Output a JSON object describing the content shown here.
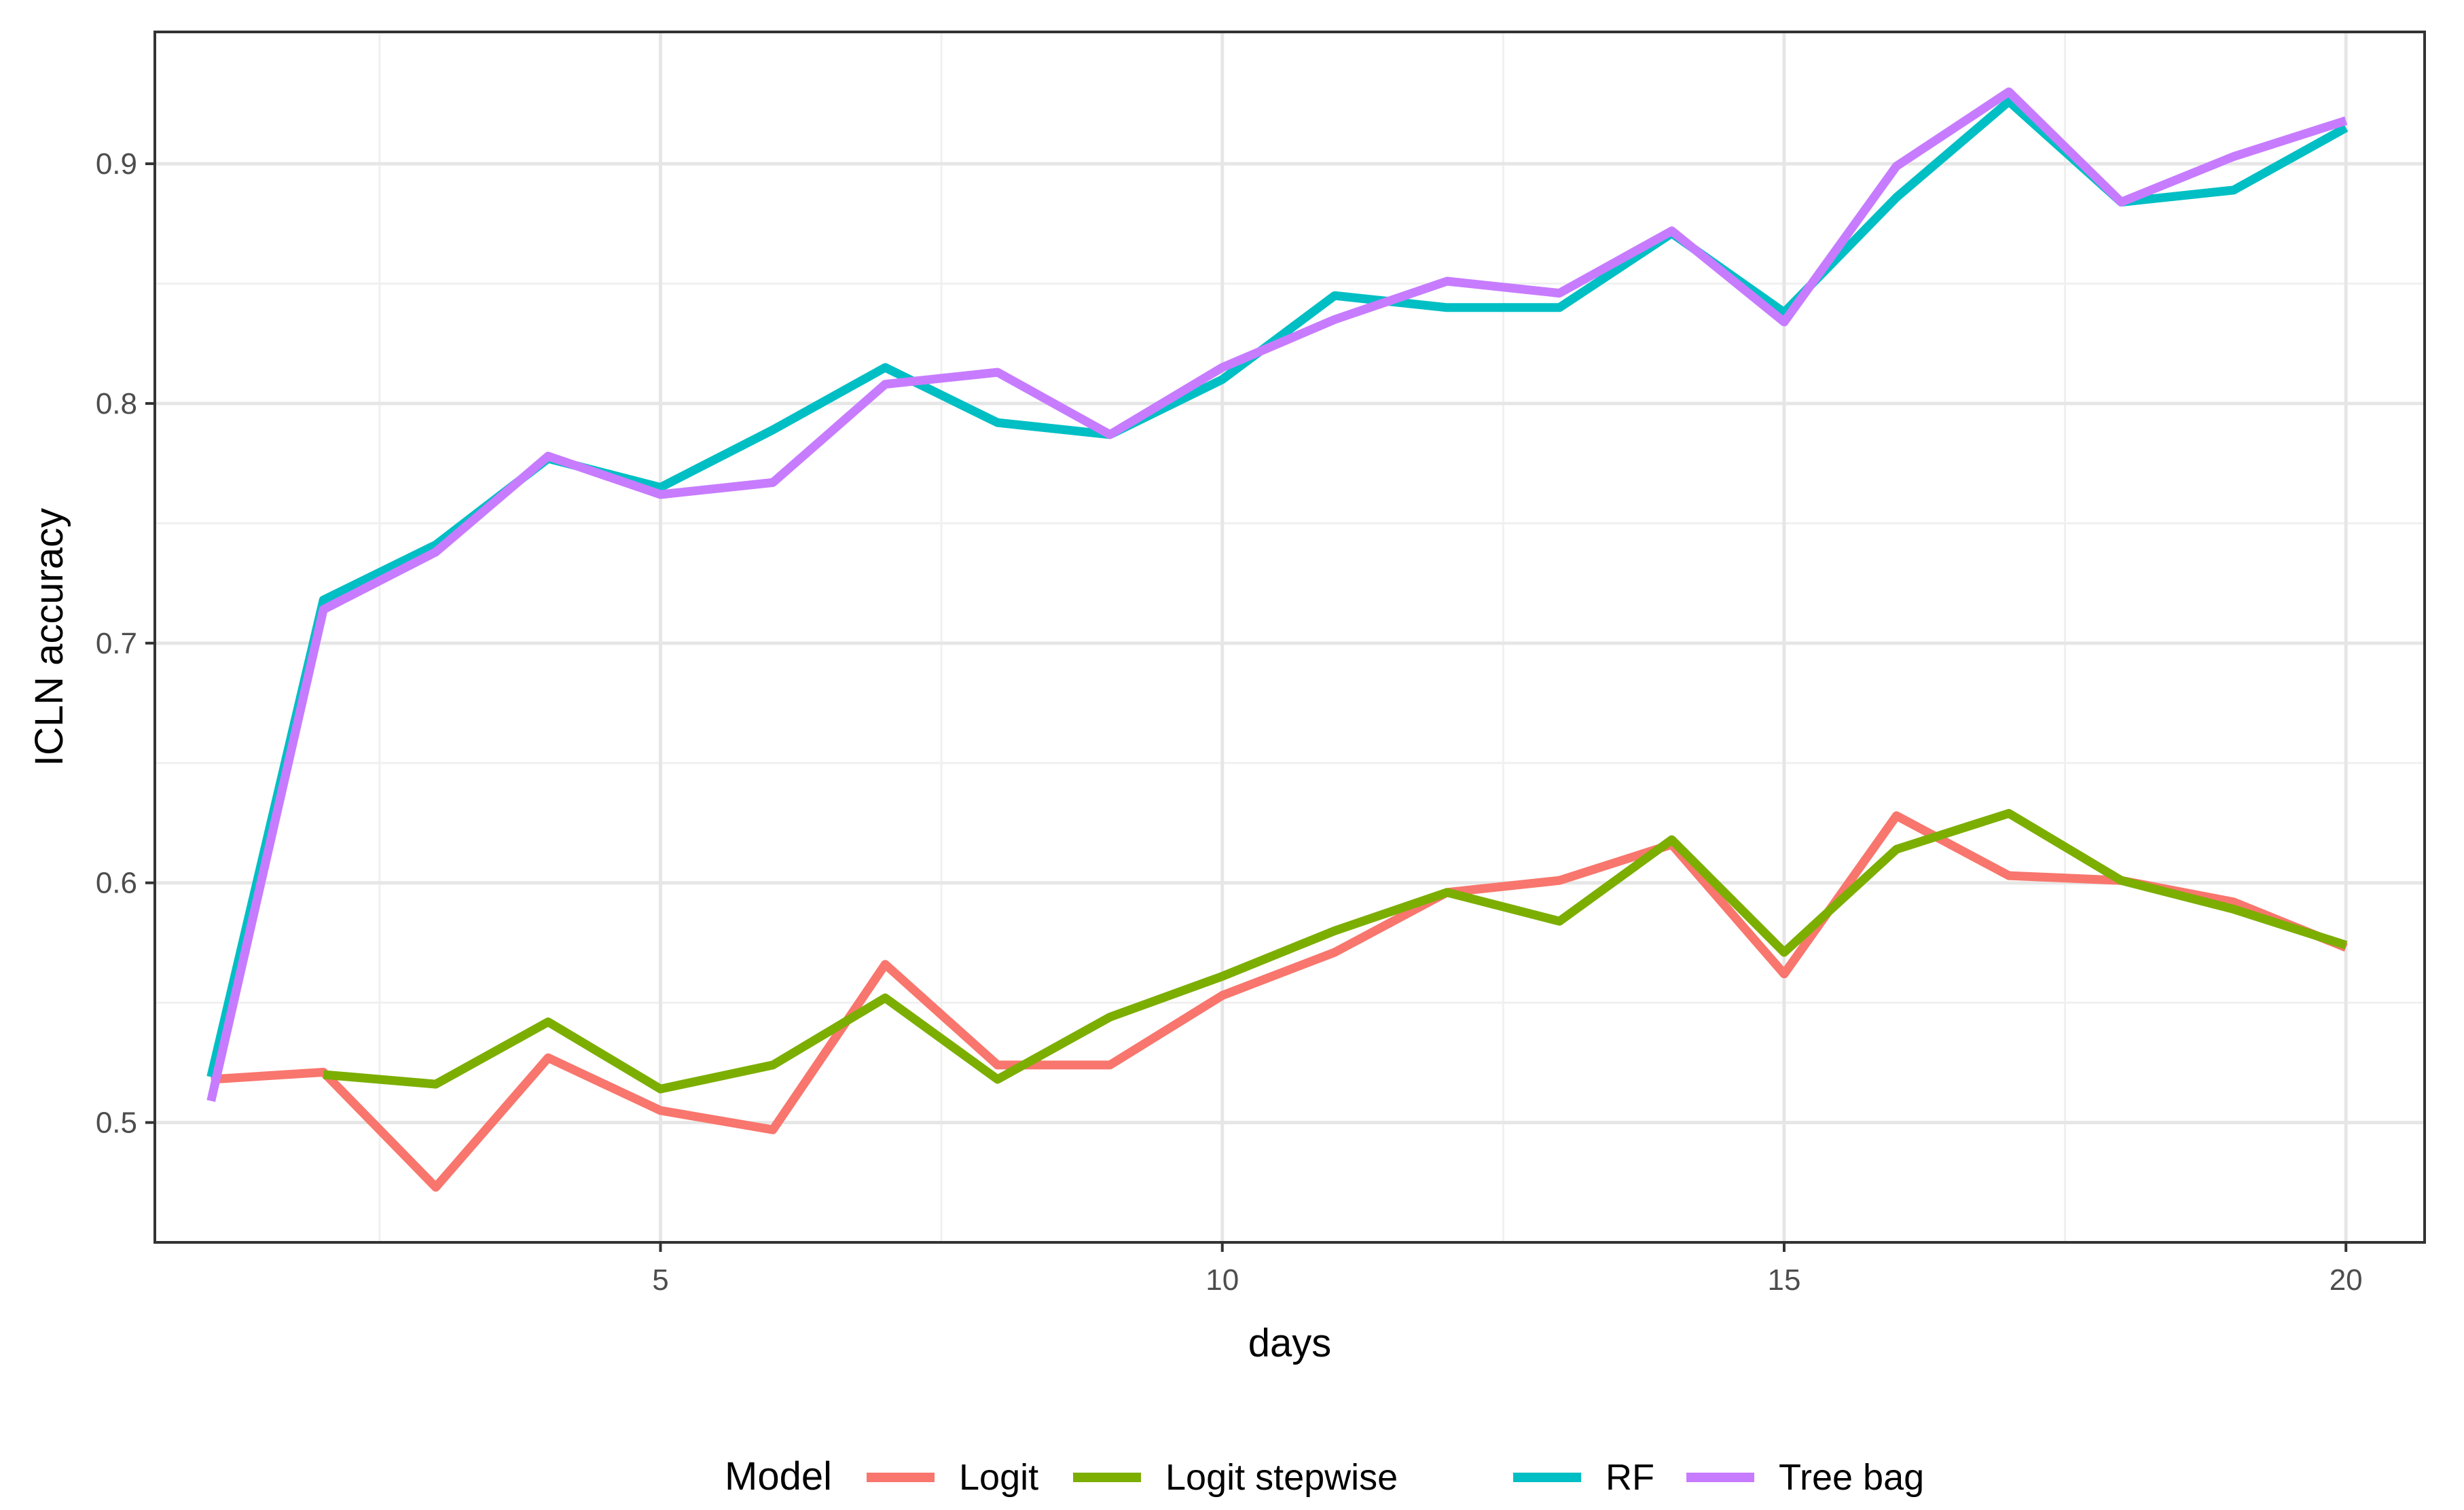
{
  "chart_data": {
    "type": "line",
    "xlabel": "days",
    "ylabel": "ICLN accuracy",
    "xlim": [
      0.5,
      20.7
    ],
    "ylim": [
      0.45,
      0.955
    ],
    "x_ticks": [
      5,
      10,
      15,
      20
    ],
    "x_minor": [
      2.5,
      7.5,
      12.5,
      17.5
    ],
    "y_ticks": [
      0.5,
      0.6,
      0.7,
      0.8,
      0.9
    ],
    "y_tick_labels": [
      "0.5",
      "0.6",
      "0.7",
      "0.8",
      "0.9"
    ],
    "y_minor": [
      0.55,
      0.65,
      0.75,
      0.85
    ],
    "grid": true,
    "legend": {
      "title": "Model",
      "position": "bottom"
    },
    "series": [
      {
        "name": "Logit",
        "color": "#F8766D",
        "x": [
          1,
          2,
          3,
          4,
          5,
          6,
          7,
          8,
          9,
          10,
          11,
          12,
          13,
          14,
          15,
          16,
          17,
          18,
          19,
          20
        ],
        "values": [
          0.518,
          0.521,
          0.473,
          0.527,
          0.505,
          0.497,
          0.566,
          0.524,
          0.524,
          0.553,
          0.571,
          0.596,
          0.601,
          0.616,
          0.562,
          0.628,
          0.603,
          0.601,
          0.592,
          0.573
        ]
      },
      {
        "name": "Logit stepwise",
        "color": "#7CAE00",
        "x": [
          2,
          3,
          4,
          5,
          6,
          7,
          8,
          9,
          10,
          11,
          12,
          13,
          14,
          15,
          16,
          17,
          18,
          19,
          20
        ],
        "values": [
          0.52,
          0.516,
          0.542,
          0.514,
          0.524,
          0.552,
          0.518,
          0.544,
          0.561,
          0.58,
          0.596,
          0.584,
          0.618,
          0.571,
          0.614,
          0.629,
          0.601,
          0.589,
          0.574
        ]
      },
      {
        "name": "RF",
        "color": "#00BFC4",
        "x": [
          1,
          2,
          3,
          4,
          5,
          6,
          7,
          8,
          9,
          10,
          11,
          12,
          13,
          14,
          15,
          16,
          17,
          18,
          19,
          20
        ],
        "values": [
          0.519,
          0.718,
          0.741,
          0.777,
          0.765,
          0.789,
          0.815,
          0.792,
          0.787,
          0.81,
          0.845,
          0.84,
          0.84,
          0.871,
          0.838,
          0.886,
          0.926,
          0.884,
          0.889,
          0.915
        ]
      },
      {
        "name": "Tree bag",
        "color": "#C77CFF",
        "x": [
          1,
          2,
          3,
          4,
          5,
          6,
          7,
          8,
          9,
          10,
          11,
          12,
          13,
          14,
          15,
          16,
          17,
          18,
          19,
          20
        ],
        "values": [
          0.509,
          0.714,
          0.738,
          0.778,
          0.762,
          0.767,
          0.808,
          0.813,
          0.787,
          0.815,
          0.835,
          0.851,
          0.846,
          0.872,
          0.834,
          0.899,
          0.93,
          0.884,
          0.903,
          0.918
        ]
      }
    ]
  }
}
